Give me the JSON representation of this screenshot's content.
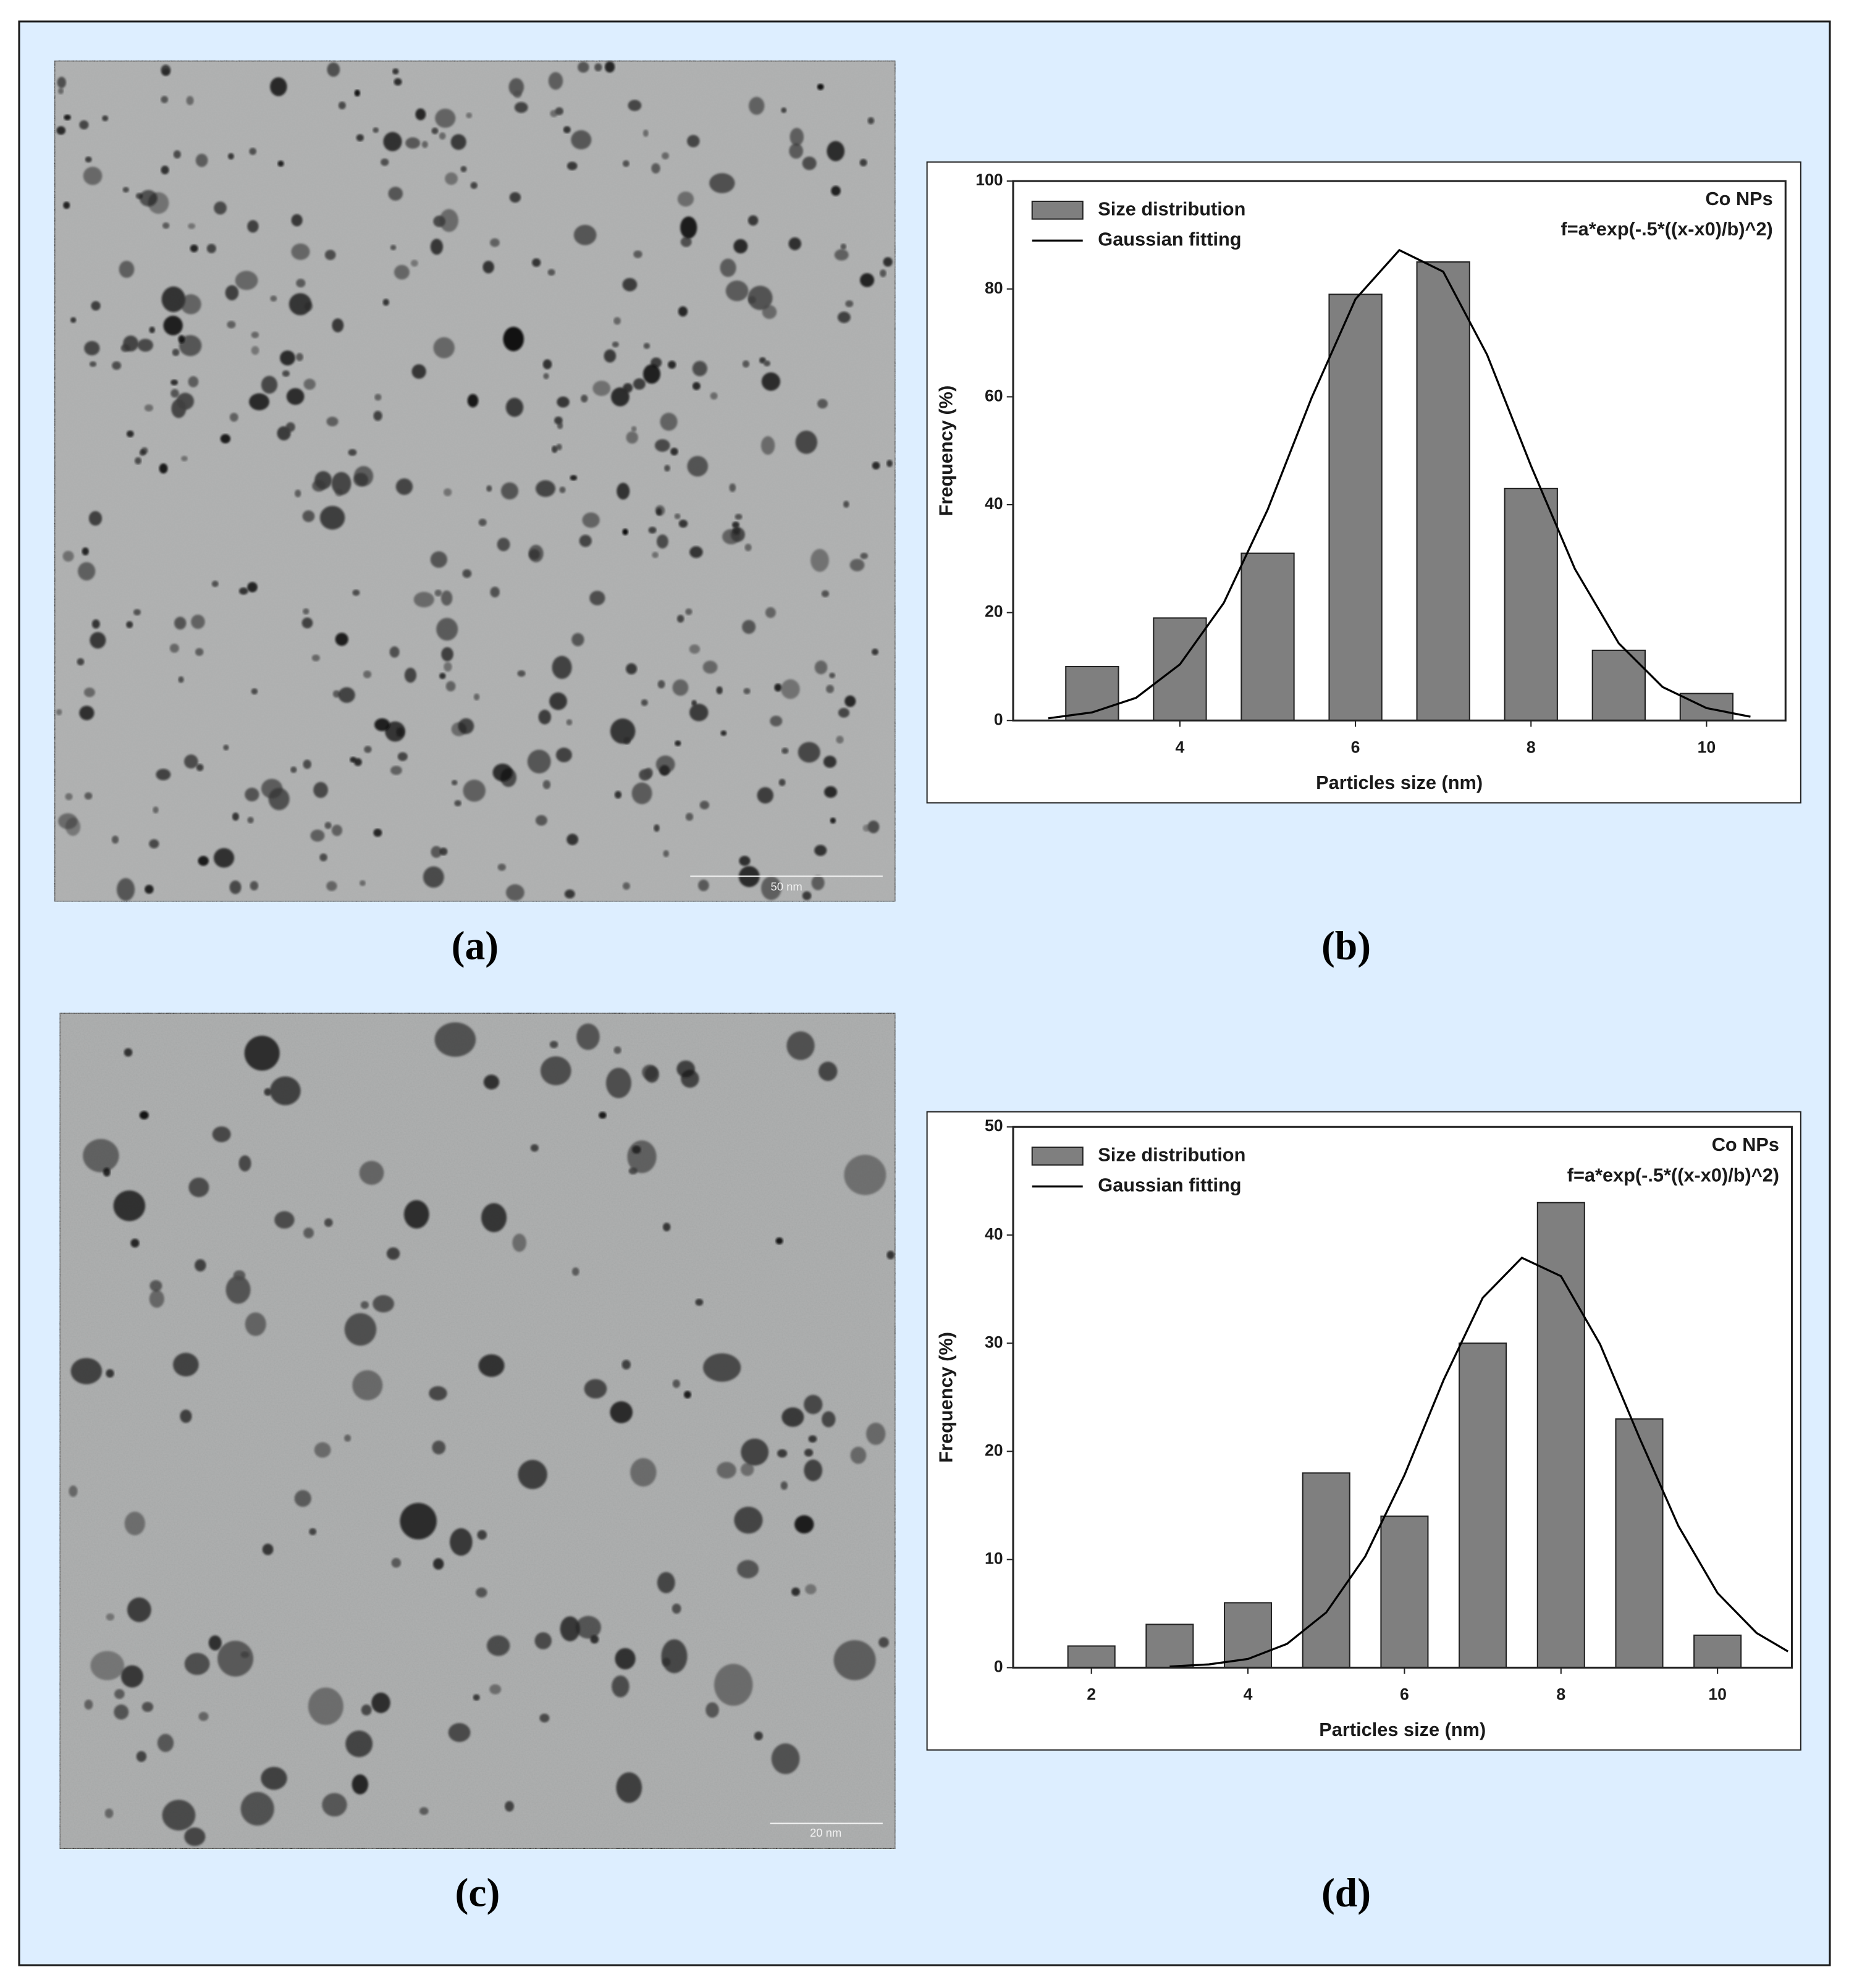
{
  "panel_labels": [
    "(a)",
    "(b)",
    "(c)",
    "(d)"
  ],
  "images": [
    {
      "scale_bar": "50 nm"
    },
    {
      "scale_bar": "20 nm"
    }
  ],
  "chart_data": [
    {
      "type": "bar",
      "xlabel": "Particles size (nm)",
      "ylabel": "Frequency (%)",
      "annotations": [
        "Co NPs",
        "f=a*exp(-.5*((x-x0)/b)^2)"
      ],
      "xlim": [
        2.1,
        10.9
      ],
      "xticks": [
        4,
        6,
        8,
        10
      ],
      "ylim": [
        0,
        100
      ],
      "yticks": [
        0,
        20,
        40,
        60,
        80,
        100
      ],
      "legend": "upper left",
      "series": [
        {
          "name": "Size distribution",
          "type": "bar",
          "color": "#7f7f7f",
          "x": [
            3,
            4,
            5,
            6,
            7,
            8,
            9,
            10
          ],
          "values": [
            10,
            19,
            31,
            79,
            85,
            43,
            13,
            5
          ]
        },
        {
          "name": "Gaussian fitting",
          "type": "line",
          "color": "#000000",
          "x": [
            2.5,
            3,
            3.5,
            4,
            4.5,
            5,
            5.5,
            6,
            6.5,
            7,
            7.5,
            8,
            8.5,
            9,
            9.5,
            10,
            10.5
          ],
          "values": [
            0.4,
            1.5,
            4.2,
            10.4,
            21.8,
            39.1,
            59.8,
            78.1,
            87.2,
            83.2,
            67.8,
            47.2,
            28.1,
            14.3,
            6.2,
            2.3,
            0.7
          ]
        }
      ]
    },
    {
      "type": "bar",
      "xlabel": "Particles size (nm)",
      "ylabel": "Frequency (%)",
      "annotations": [
        "Co NPs",
        "f=a*exp(-.5*((x-x0)/b)^2)"
      ],
      "xlim": [
        1.0,
        10.95
      ],
      "xticks": [
        2,
        4,
        6,
        8,
        10
      ],
      "ylim": [
        0,
        50
      ],
      "yticks": [
        0,
        10,
        20,
        30,
        40,
        50
      ],
      "legend": "upper left",
      "series": [
        {
          "name": "Size distribution",
          "type": "bar",
          "color": "#7f7f7f",
          "x": [
            2,
            3,
            4,
            5,
            6,
            7,
            8,
            9,
            10
          ],
          "values": [
            2,
            4,
            6,
            18,
            14,
            30,
            43,
            23,
            3
          ]
        },
        {
          "name": "Gaussian fitting",
          "type": "line",
          "color": "#000000",
          "x": [
            3,
            3.5,
            4,
            4.5,
            5,
            5.5,
            6,
            6.5,
            7,
            7.5,
            8,
            8.5,
            9,
            9.5,
            10,
            10.5,
            10.9
          ],
          "values": [
            0.1,
            0.3,
            0.8,
            2.2,
            5.1,
            10.3,
            17.8,
            26.6,
            34.2,
            37.9,
            36.2,
            29.9,
            21.3,
            13.1,
            6.9,
            3.2,
            1.5
          ]
        }
      ]
    }
  ]
}
